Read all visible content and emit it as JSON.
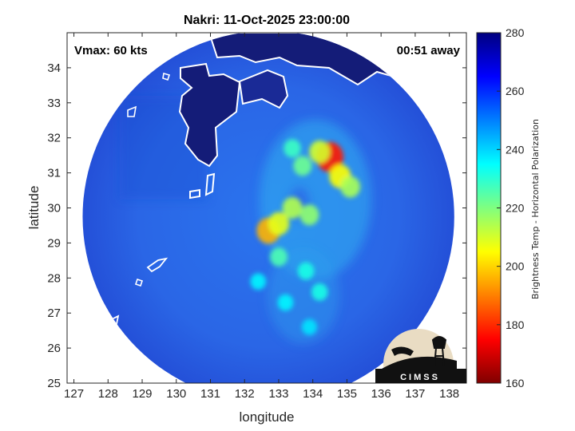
{
  "chart_data": {
    "type": "heatmap",
    "title": "Nakri: 11-Oct-2025 23:00:00",
    "xlabel": "longitude",
    "ylabel": "latitude",
    "xlim": [
      126.8,
      138.5
    ],
    "ylim": [
      25,
      35
    ],
    "xticks": [
      127,
      128,
      129,
      130,
      131,
      132,
      133,
      134,
      135,
      136,
      137,
      138
    ],
    "yticks": [
      25,
      26,
      27,
      28,
      29,
      30,
      31,
      32,
      33,
      34
    ],
    "annotations": {
      "vmax": "Vmax: 60 kts",
      "time_away": "00:51 away"
    },
    "colorbar": {
      "label": "Brightness Temp - Horizontal Polarization",
      "min": 160,
      "max": 280,
      "ticks": [
        160,
        180,
        200,
        220,
        240,
        260,
        280
      ],
      "colormap": "jet"
    },
    "swath": {
      "center_lon": 132.7,
      "center_lat": 29.75,
      "radius_deg_lat": 5.3,
      "background_value": 258
    },
    "cold_features": [
      {
        "lon": 134.5,
        "lat": 31.45,
        "value": 178
      },
      {
        "lon": 134.2,
        "lat": 31.6,
        "value": 210
      },
      {
        "lon": 134.8,
        "lat": 30.9,
        "value": 205
      },
      {
        "lon": 135.1,
        "lat": 30.6,
        "value": 215
      },
      {
        "lon": 133.7,
        "lat": 31.2,
        "value": 222
      },
      {
        "lon": 133.4,
        "lat": 31.7,
        "value": 228
      },
      {
        "lon": 133.4,
        "lat": 30.0,
        "value": 214
      },
      {
        "lon": 133.9,
        "lat": 29.8,
        "value": 218
      },
      {
        "lon": 132.7,
        "lat": 29.35,
        "value": 196
      },
      {
        "lon": 133.0,
        "lat": 29.55,
        "value": 208
      },
      {
        "lon": 133.0,
        "lat": 28.6,
        "value": 226
      },
      {
        "lon": 133.8,
        "lat": 28.2,
        "value": 232
      },
      {
        "lon": 134.2,
        "lat": 27.6,
        "value": 232
      },
      {
        "lon": 132.4,
        "lat": 27.9,
        "value": 236
      },
      {
        "lon": 133.2,
        "lat": 27.3,
        "value": 236
      },
      {
        "lon": 133.9,
        "lat": 26.6,
        "value": 238
      }
    ],
    "land_value": 275,
    "logo_text": "CIMSS"
  }
}
